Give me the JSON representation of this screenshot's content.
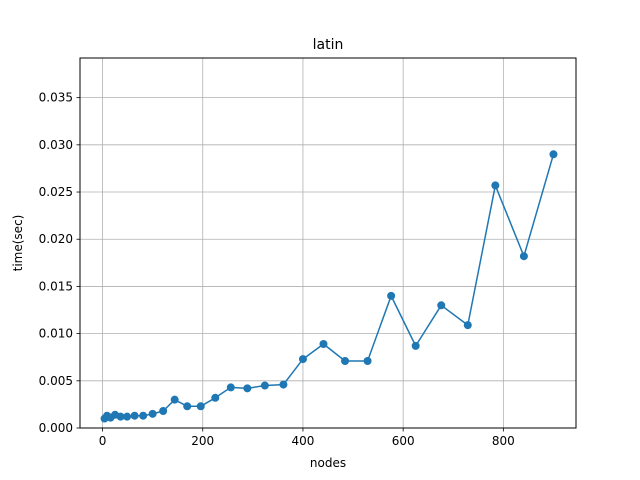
{
  "chart_data": {
    "type": "line",
    "title": "latin",
    "xlabel": "nodes",
    "ylabel": "time(sec)",
    "xlim": [
      -45,
      945
    ],
    "ylim": [
      0,
      0.0392
    ],
    "xticks": [
      {
        "value": 0,
        "label": "0"
      },
      {
        "value": 200,
        "label": "200"
      },
      {
        "value": 400,
        "label": "400"
      },
      {
        "value": 600,
        "label": "600"
      },
      {
        "value": 800,
        "label": "800"
      }
    ],
    "yticks": [
      {
        "value": 0,
        "label": "0.000"
      },
      {
        "value": 0.005,
        "label": "0.005"
      },
      {
        "value": 0.01,
        "label": "0.010"
      },
      {
        "value": 0.015,
        "label": "0.015"
      },
      {
        "value": 0.02,
        "label": "0.020"
      },
      {
        "value": 0.025,
        "label": "0.025"
      },
      {
        "value": 0.03,
        "label": "0.030"
      },
      {
        "value": 0.035,
        "label": "0.035"
      }
    ],
    "grid": true,
    "series": [
      {
        "color": "#1f77b4",
        "marker": "circle",
        "x": [
          4,
          9,
          16,
          25,
          36,
          49,
          64,
          81,
          100,
          121,
          144,
          169,
          196,
          225,
          256,
          289,
          324,
          361,
          400,
          441,
          484,
          529,
          576,
          625,
          676,
          729,
          784,
          841,
          900
        ],
        "y": [
          0.001,
          0.0013,
          0.0011,
          0.0014,
          0.0012,
          0.0012,
          0.0013,
          0.0013,
          0.0015,
          0.0018,
          0.003,
          0.0023,
          0.0023,
          0.0032,
          0.0043,
          0.0042,
          0.0045,
          0.0046,
          0.0073,
          0.0089,
          0.0071,
          0.0071,
          0.014,
          0.0087,
          0.013,
          0.0109,
          0.0257,
          0.0182,
          0.029
        ]
      }
    ]
  }
}
